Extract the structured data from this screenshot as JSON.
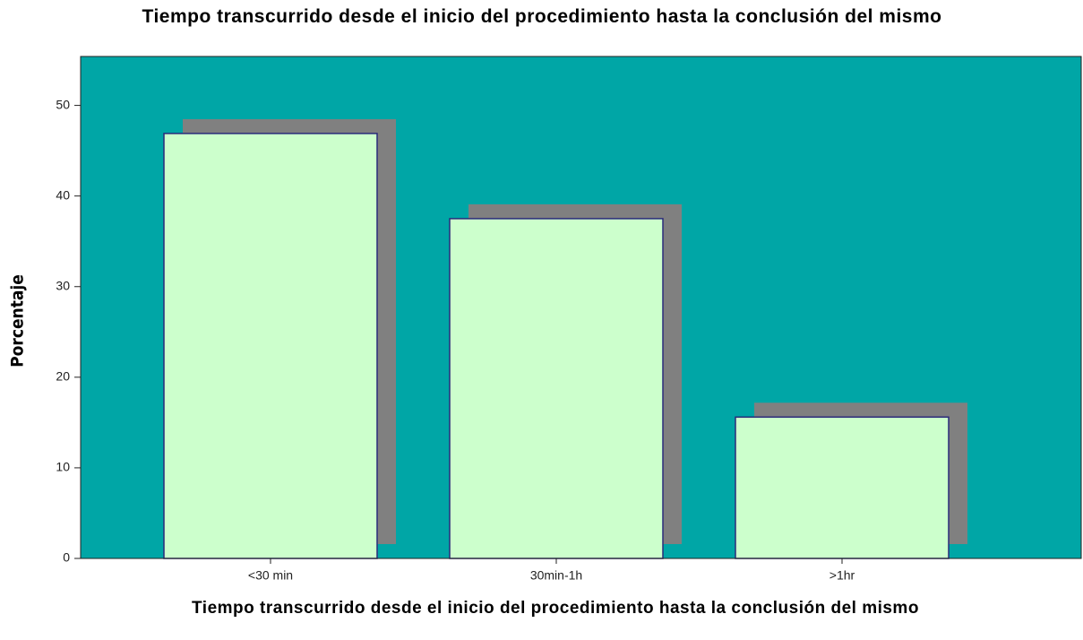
{
  "chart_data": {
    "type": "bar",
    "title": "Tiempo transcurrido desde el inicio del procedimiento hasta la conclusión del mismo",
    "x_label": "Tiempo transcurrido desde el inicio del procedimiento hasta la conclusión del mismo",
    "y_label": "Porcentaje",
    "categories": [
      "<30 min",
      "30min-1h",
      ">1hr"
    ],
    "values": [
      46.9,
      37.5,
      15.6
    ],
    "color": "#ccffcc",
    "background": "#00a6a6",
    "ylim": [
      0,
      55.4
    ],
    "yticks": [
      0,
      10,
      20,
      30,
      40,
      50
    ]
  }
}
